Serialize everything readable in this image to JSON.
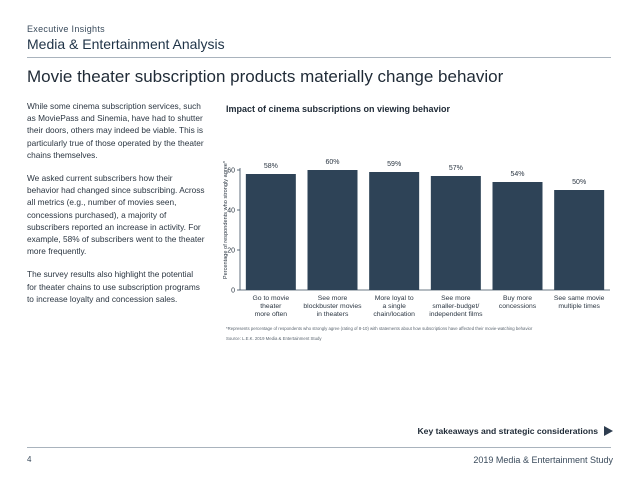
{
  "header": {
    "eyebrow": "Executive Insights",
    "section": "Media & Entertainment Analysis",
    "headline": "Movie theater subscription products materially change behavior"
  },
  "body_paragraphs": [
    "While some cinema subscription services, such as MoviePass and Sinemia, have had to shutter their doors, others may indeed be viable. This is particularly true of those operated by the theater chains themselves.",
    "We asked current subscribers how their behavior had changed since subscribing. Across all metrics (e.g., number of movies seen, concessions purchased), a majority of subscribers reported an increase in activity. For example, 58% of subscribers went to the theater more frequently.",
    "The survey results also highlight the potential for theater chains to use subscription programs to increase loyalty and concession sales."
  ],
  "chart_data": {
    "type": "bar",
    "title": "Impact of cinema subscriptions on viewing behavior",
    "ylabel": "Percentage of respondents who strongly agree*",
    "xlabel": "",
    "ylim": [
      0,
      60
    ],
    "yticks": [
      "0",
      "20",
      "40",
      "60"
    ],
    "ytick_values": [
      0,
      20,
      40,
      60
    ],
    "categories": [
      [
        "Go to movie",
        "theater",
        "more often"
      ],
      [
        "See more",
        "blockbuster movies",
        "in theaters"
      ],
      [
        "More loyal to",
        "a single",
        "chain/location"
      ],
      [
        "See more",
        "smaller-budget/",
        "independent films"
      ],
      [
        "Buy more",
        "concessions"
      ],
      [
        "See same movie",
        "multiple times"
      ]
    ],
    "values": [
      58,
      60,
      59,
      57,
      54,
      50
    ],
    "data_labels": [
      "58%",
      "60%",
      "59%",
      "57%",
      "54%",
      "50%"
    ],
    "bar_color": "#2e4357",
    "grid": false,
    "legend": "none"
  },
  "footnote": "*Represents percentage of respondents who strongly agree (rating of 8-10) with statements about how subscriptions have affected their movie-watching behavior",
  "source": "Source: L.E.K. 2019 Media & Entertainment Study",
  "cta_label": "Key takeaways and strategic considerations",
  "footer": {
    "page": "4",
    "title": "2019 Media & Entertainment Study"
  }
}
